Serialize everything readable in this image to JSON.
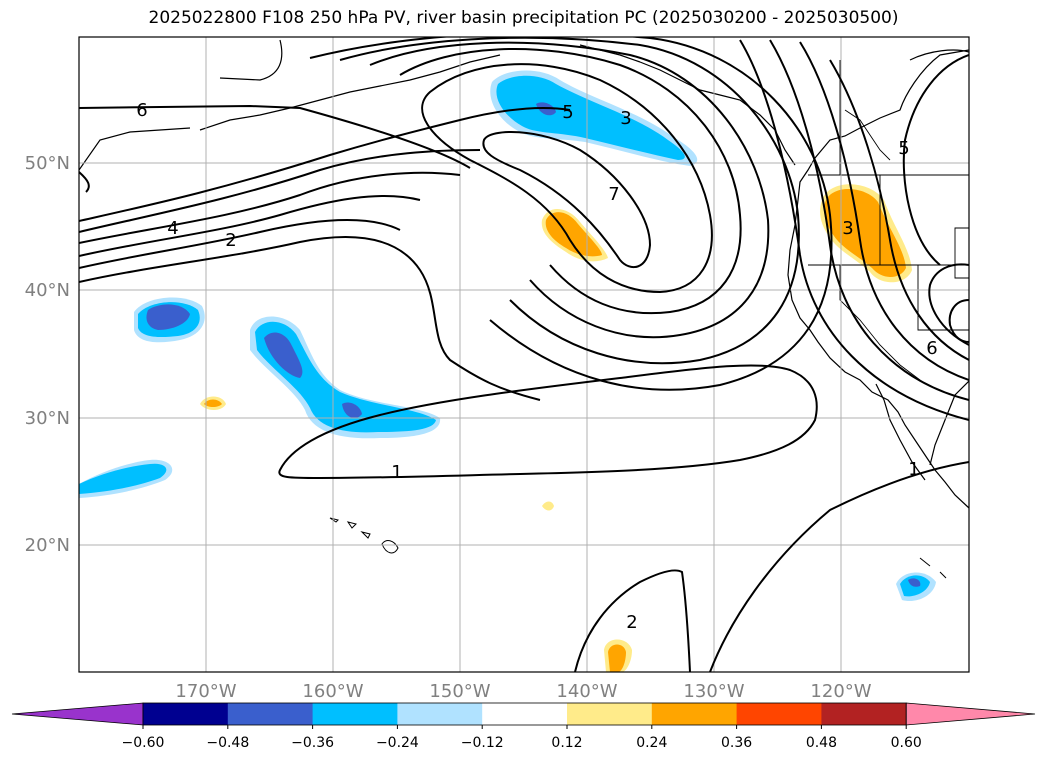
{
  "title": "2025022800 F108 250 hPa PV, river basin precipitation PC (2025030200 - 2025030500)",
  "map": {
    "lat_ticks": [
      "50°N",
      "40°N",
      "30°N",
      "20°N"
    ],
    "lon_ticks": [
      "170°W",
      "160°W",
      "150°W",
      "140°W",
      "130°W",
      "120°W"
    ],
    "label_color": "#808080",
    "contour_labels": [
      "6",
      "4",
      "2",
      "1",
      "5",
      "3",
      "7",
      "5",
      "3",
      "6",
      "1",
      "2"
    ]
  },
  "colorbar": {
    "ticks": [
      "−0.60",
      "−0.48",
      "−0.36",
      "−0.24",
      "−0.12",
      "0.12",
      "0.24",
      "0.36",
      "0.48",
      "0.60"
    ],
    "colors": [
      "#9933cc",
      "#000090",
      "#3a5fcd",
      "#00bfff",
      "#b0e2ff",
      "#ffffff",
      "#ffeb8a",
      "#ffa500",
      "#ff4500",
      "#b22222",
      "#ff88aa"
    ]
  }
}
